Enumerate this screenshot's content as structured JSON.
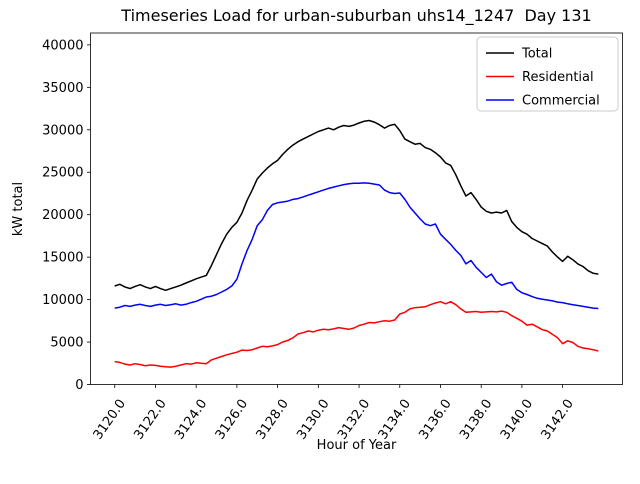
{
  "figure": {
    "title": "Timeseries Load for urban-suburban uhs14_1247  Day 131",
    "xlabel": "Hour of Year",
    "ylabel": "kW total"
  },
  "legend": {
    "items": [
      {
        "label": "Total",
        "color": "#000000"
      },
      {
        "label": "Residential",
        "color": "#ff0000"
      },
      {
        "label": "Commercial",
        "color": "#0000ff"
      }
    ]
  },
  "chart_data": {
    "type": "line",
    "title": "Timeseries Load for urban-suburban uhs14_1247  Day 131",
    "xlabel": "Hour of Year",
    "ylabel": "kW total",
    "grid": false,
    "legend_position": "upper right",
    "xlim": [
      3118.81,
      3144.94
    ],
    "ylim": [
      0,
      41400
    ],
    "xticks": [
      3120.0,
      3122.0,
      3124.0,
      3126.0,
      3128.0,
      3130.0,
      3132.0,
      3134.0,
      3136.0,
      3138.0,
      3140.0,
      3142.0
    ],
    "xtick_labels": [
      "3120.0",
      "3122.0",
      "3124.0",
      "3126.0",
      "3128.0",
      "3130.0",
      "3132.0",
      "3134.0",
      "3136.0",
      "3138.0",
      "3140.0",
      "3142.0"
    ],
    "yticks": [
      0,
      5000,
      10000,
      15000,
      20000,
      25000,
      30000,
      35000,
      40000
    ],
    "ytick_labels": [
      "0",
      "5000",
      "10000",
      "15000",
      "20000",
      "25000",
      "30000",
      "35000",
      "40000"
    ],
    "x": [
      3120.0,
      3120.25,
      3120.5,
      3120.75,
      3121.0,
      3121.25,
      3121.5,
      3121.75,
      3122.0,
      3122.25,
      3122.5,
      3122.75,
      3123.0,
      3123.25,
      3123.5,
      3123.75,
      3124.0,
      3124.25,
      3124.5,
      3124.75,
      3125.0,
      3125.25,
      3125.5,
      3125.75,
      3126.0,
      3126.25,
      3126.5,
      3126.75,
      3127.0,
      3127.25,
      3127.5,
      3127.75,
      3128.0,
      3128.25,
      3128.5,
      3128.75,
      3129.0,
      3129.25,
      3129.5,
      3129.75,
      3130.0,
      3130.25,
      3130.5,
      3130.75,
      3131.0,
      3131.25,
      3131.5,
      3131.75,
      3132.0,
      3132.25,
      3132.5,
      3132.75,
      3133.0,
      3133.25,
      3133.5,
      3133.75,
      3134.0,
      3134.25,
      3134.5,
      3134.75,
      3135.0,
      3135.25,
      3135.5,
      3135.75,
      3136.0,
      3136.25,
      3136.5,
      3136.75,
      3137.0,
      3137.25,
      3137.5,
      3137.75,
      3138.0,
      3138.25,
      3138.5,
      3138.75,
      3139.0,
      3139.25,
      3139.5,
      3139.75,
      3140.0,
      3140.25,
      3140.5,
      3140.75,
      3141.0,
      3141.25,
      3141.5,
      3141.75,
      3142.0,
      3142.25,
      3142.5,
      3142.75,
      3143.0,
      3143.25,
      3143.5,
      3143.75
    ],
    "series": [
      {
        "name": "Total",
        "color": "#000000",
        "values": [
          11600,
          11800,
          11500,
          11300,
          11550,
          11750,
          11500,
          11300,
          11550,
          11300,
          11100,
          11300,
          11500,
          11700,
          11950,
          12200,
          12450,
          12650,
          12850,
          14000,
          15300,
          16600,
          17700,
          18500,
          19100,
          20200,
          21700,
          22900,
          24200,
          24900,
          25500,
          26000,
          26400,
          27100,
          27700,
          28200,
          28600,
          28900,
          29200,
          29500,
          29800,
          30000,
          30200,
          30000,
          30300,
          30500,
          30400,
          30550,
          30800,
          31000,
          31100,
          30900,
          30600,
          30200,
          30500,
          30650,
          29900,
          28900,
          28600,
          28300,
          28400,
          27900,
          27700,
          27300,
          26800,
          26100,
          25800,
          24700,
          23400,
          22200,
          22600,
          21800,
          20900,
          20400,
          20200,
          20300,
          20200,
          20500,
          19200,
          18500,
          18000,
          17700,
          17200,
          16900,
          16600,
          16300,
          15600,
          15000,
          14500,
          15100,
          14700,
          14200,
          13900,
          13400,
          13100,
          13000
        ]
      },
      {
        "name": "Residential",
        "color": "#ff0000",
        "values": [
          2700,
          2600,
          2400,
          2300,
          2450,
          2350,
          2200,
          2300,
          2250,
          2150,
          2100,
          2050,
          2150,
          2300,
          2450,
          2400,
          2550,
          2500,
          2450,
          2900,
          3100,
          3300,
          3500,
          3650,
          3800,
          4050,
          4000,
          4100,
          4300,
          4500,
          4450,
          4550,
          4700,
          5000,
          5200,
          5500,
          5950,
          6100,
          6300,
          6200,
          6400,
          6500,
          6450,
          6550,
          6700,
          6600,
          6500,
          6650,
          6950,
          7100,
          7300,
          7250,
          7400,
          7500,
          7450,
          7600,
          8300,
          8500,
          8900,
          9050,
          9100,
          9150,
          9400,
          9600,
          9750,
          9500,
          9750,
          9400,
          8900,
          8500,
          8550,
          8600,
          8500,
          8550,
          8600,
          8550,
          8650,
          8500,
          8100,
          7800,
          7450,
          7000,
          7100,
          6800,
          6450,
          6300,
          5900,
          5500,
          4800,
          5150,
          4950,
          4500,
          4300,
          4200,
          4100,
          3950
        ]
      },
      {
        "name": "Commercial",
        "color": "#0000ff",
        "values": [
          9000,
          9100,
          9300,
          9200,
          9350,
          9450,
          9300,
          9200,
          9350,
          9450,
          9300,
          9400,
          9500,
          9350,
          9450,
          9650,
          9800,
          10050,
          10300,
          10400,
          10600,
          10900,
          11200,
          11600,
          12400,
          14200,
          15800,
          17100,
          18700,
          19400,
          20500,
          21200,
          21400,
          21500,
          21600,
          21800,
          21900,
          22100,
          22300,
          22500,
          22700,
          22900,
          23100,
          23250,
          23400,
          23550,
          23650,
          23700,
          23700,
          23750,
          23700,
          23600,
          23500,
          22900,
          22600,
          22500,
          22550,
          21800,
          20900,
          20200,
          19500,
          18900,
          18700,
          18900,
          17700,
          17100,
          16500,
          15800,
          15200,
          14200,
          14600,
          13800,
          13200,
          12600,
          13000,
          12100,
          11700,
          11900,
          12050,
          11200,
          10800,
          10600,
          10350,
          10150,
          10050,
          9950,
          9850,
          9700,
          9650,
          9500,
          9400,
          9300,
          9200,
          9100,
          9000,
          8950
        ]
      }
    ]
  }
}
